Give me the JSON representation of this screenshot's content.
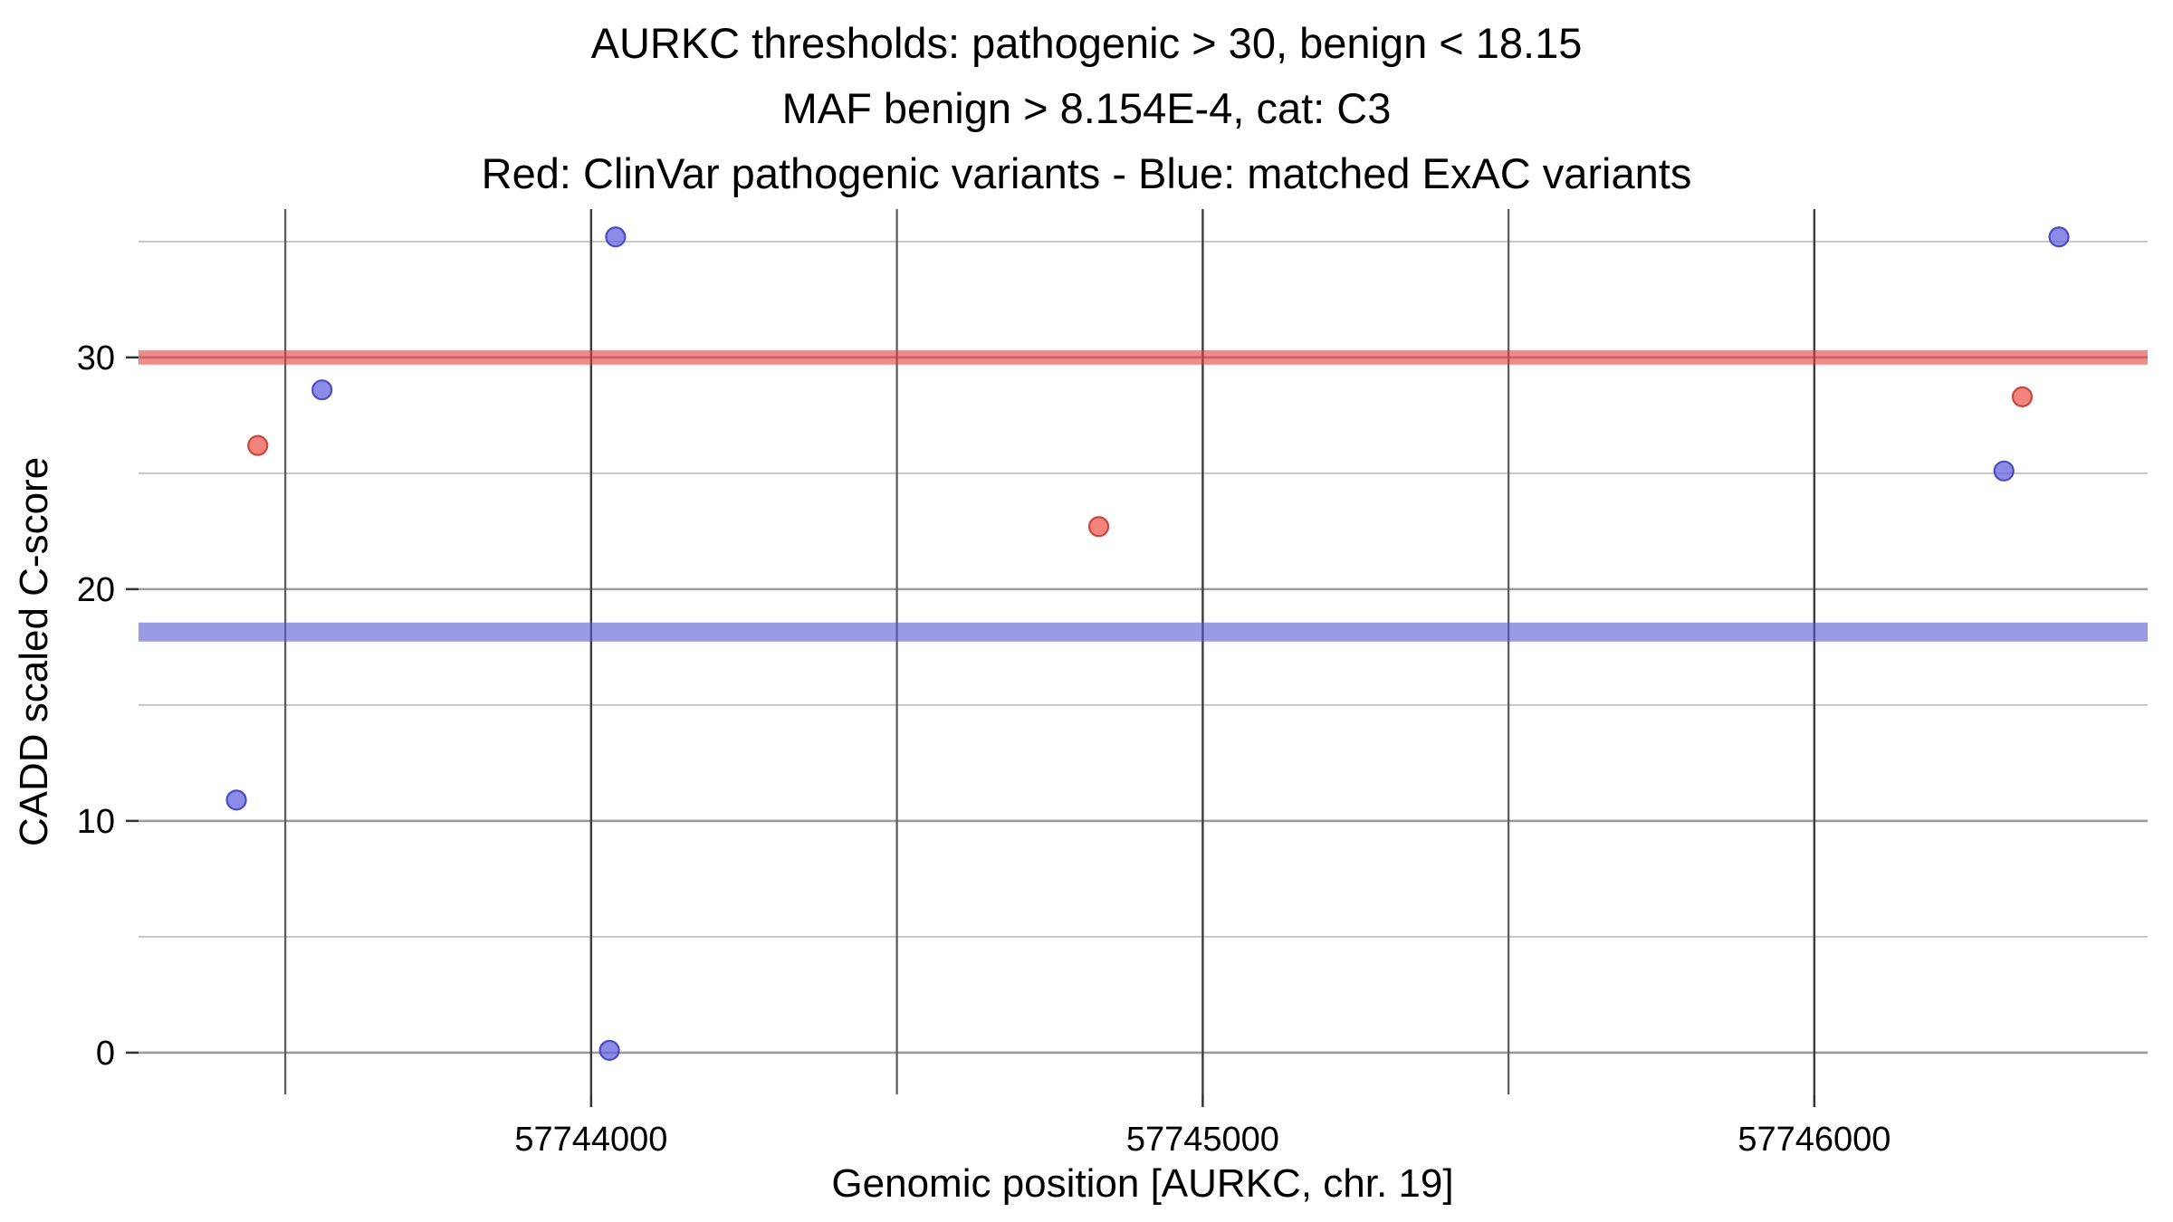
{
  "chart_data": {
    "type": "scatter",
    "title_lines": [
      "AURKC thresholds: pathogenic > 30, benign < 18.15",
      "MAF benign > 8.154E-4, cat: C3",
      "Red: ClinVar pathogenic variants - Blue: matched ExAC variants"
    ],
    "x_axis": {
      "label": "Genomic position [AURKC, chr. 19]",
      "domain": [
        57743260,
        57746545
      ],
      "major_ticks": [
        {
          "value": 57744000,
          "label": "57744000"
        },
        {
          "value": 57745000,
          "label": "57745000"
        },
        {
          "value": 57746000,
          "label": "57746000"
        }
      ],
      "minor_ticks": [
        57743500,
        57744500,
        57745500
      ]
    },
    "y_axis": {
      "label": "CADD scaled C-score",
      "domain": [
        -1.8,
        36.4
      ],
      "major_ticks": [
        {
          "value": 0,
          "label": "0"
        },
        {
          "value": 10,
          "label": "10"
        },
        {
          "value": 20,
          "label": "20"
        },
        {
          "value": 30,
          "label": "30"
        }
      ],
      "minor_ticks": [
        5,
        15,
        25,
        35
      ]
    },
    "thresholds": [
      {
        "name": "pathogenic-threshold",
        "label": "pathogenic > 30",
        "value": 30,
        "color": "#e43d3d",
        "opacity": 0.6,
        "height": 16
      },
      {
        "name": "benign-threshold",
        "label": "benign < 18.15",
        "value": 18.15,
        "color": "#5656d4",
        "opacity": 0.6,
        "height": 21
      }
    ],
    "series": [
      {
        "name": "ClinVar pathogenic variants",
        "color": "#ee5a52",
        "stroke": "#c23b34",
        "points": [
          {
            "x": 57743455,
            "y": 26.2
          },
          {
            "x": 57744830,
            "y": 22.7
          },
          {
            "x": 57746340,
            "y": 28.3
          }
        ]
      },
      {
        "name": "matched ExAC variants",
        "color": "#6666e0",
        "stroke": "#3f3fbd",
        "points": [
          {
            "x": 57743420,
            "y": 10.9
          },
          {
            "x": 57743560,
            "y": 28.6
          },
          {
            "x": 57744040,
            "y": 35.2
          },
          {
            "x": 57744030,
            "y": 0.1
          },
          {
            "x": 57746310,
            "y": 25.1
          },
          {
            "x": 57746400,
            "y": 35.2
          }
        ]
      }
    ],
    "style": {
      "background": "#ffffff",
      "grid_h_major_color": "#9b9b9b",
      "grid_h_minor_color": "#c2c2c2",
      "grid_v_major_color": "#3c3c3c",
      "grid_v_minor_color": "#5a5a5a",
      "point_radius": 10.5
    }
  }
}
